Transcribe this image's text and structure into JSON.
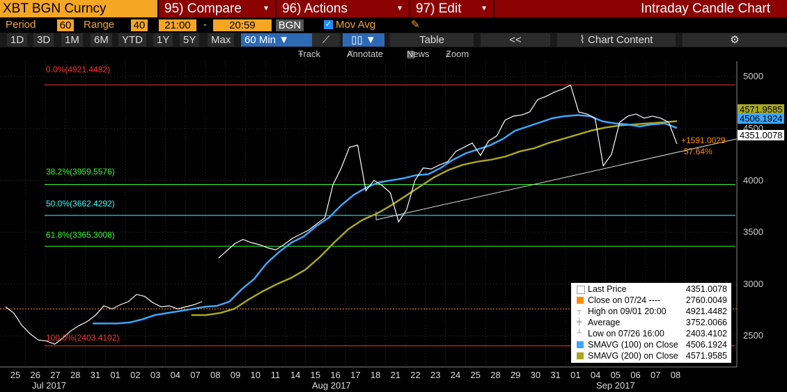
{
  "header": {
    "ticker": "XBT BGN Curncy",
    "compare": "95) Compare",
    "actions": "96) Actions",
    "edit": "97) Edit",
    "title": "Intraday Candle Chart"
  },
  "settings": {
    "period_label": "Period",
    "period_value": "60",
    "range_label": "Range",
    "range_value": "40",
    "time_from": "21:00",
    "dash": "-",
    "time_to": "20:59",
    "source": "BGN",
    "mov_avg_label": "Mov Avg"
  },
  "toolbar": {
    "timeframes": [
      "1D",
      "3D",
      "1M",
      "6M",
      "YTD",
      "1Y",
      "5Y",
      "Max"
    ],
    "interval": "60 Min ▼",
    "table_label": "Table",
    "collapse": "<<",
    "chart_content": "Chart Content",
    "tools": [
      "Track",
      "Annotate",
      "News",
      "Zoom"
    ]
  },
  "colors": {
    "price": "#ffffff",
    "sma100": "#3ea6ff",
    "sma200": "#a8a820",
    "fib_0": "#ff3030",
    "fib_382": "#33ff33",
    "fib_50": "#33ffff",
    "fib_618": "#33ff33",
    "fib_100": "#ff3030",
    "close_line": "#ff8c00",
    "trend": "#dddddd"
  },
  "chart_data": {
    "type": "line",
    "ylim": [
      2200,
      5150
    ],
    "yticks": [
      2500,
      3000,
      3500,
      4000,
      4500,
      5000
    ],
    "xticks": [
      "25",
      "26",
      "27",
      "28",
      "31",
      "01",
      "02",
      "03",
      "04",
      "07",
      "08",
      "09",
      "10",
      "11",
      "14",
      "15",
      "16",
      "17",
      "18",
      "21",
      "22",
      "23",
      "24",
      "25",
      "28",
      "29",
      "30",
      "31",
      "01",
      "04",
      "05",
      "06",
      "07",
      "08"
    ],
    "month_labels": [
      "Jul 2017",
      "Aug 2017",
      "Sep 2017"
    ],
    "fib_levels": [
      {
        "label": "0.0%(4921.4482)",
        "value": 4921.4482
      },
      {
        "label": "38.2%(3959.5576)",
        "value": 3959.5576
      },
      {
        "label": "50.0%(3662.4292)",
        "value": 3662.4292
      },
      {
        "label": "61.8%(3365.3008)",
        "value": 3365.3008
      },
      {
        "label": "100.0%(2403.4102)",
        "value": 2403.4102
      }
    ],
    "close_0724": 2760.0049,
    "annotation_change": "+1591.0029",
    "annotation_pct": "57.64%",
    "price_labels": {
      "last": "4351.0078",
      "sma100": "4506.1924",
      "sma200": "4571.9585"
    },
    "series": [
      {
        "name": "Last Price",
        "values": [
          2780,
          2720,
          2600,
          2520,
          2460,
          2450,
          2420,
          2480,
          2550,
          2600,
          2640,
          2700,
          2790,
          2760,
          2800,
          2830,
          2900,
          2880,
          2820,
          2780,
          2790,
          2760,
          2780,
          2800,
          2830,
          null,
          3250,
          3320,
          3390,
          3430,
          3400,
          3380,
          3350,
          3330,
          3380,
          3440,
          3480,
          3520,
          3580,
          3640,
          3960,
          4120,
          4320,
          4340,
          3900,
          4000,
          3950,
          3880,
          3600,
          3720,
          4000,
          4120,
          4110,
          4150,
          4180,
          4280,
          4320,
          4360,
          4240,
          4380,
          4430,
          4580,
          4620,
          4630,
          4660,
          4780,
          4810,
          4850,
          4880,
          4920,
          4660,
          4640,
          4600,
          4140,
          4250,
          4560,
          4620,
          4640,
          4600,
          4620,
          4600,
          4560,
          4351
        ]
      },
      {
        "name": "SMAVG (100) on Close",
        "values": [
          null,
          null,
          null,
          null,
          null,
          null,
          null,
          2620,
          2620,
          2620,
          2630,
          2660,
          2700,
          2720,
          2740,
          2760,
          2780,
          2790,
          2830,
          2950,
          3050,
          3200,
          3310,
          3400,
          3460,
          3560,
          3640,
          3760,
          3860,
          3930,
          3980,
          4000,
          4020,
          4050,
          4060,
          4120,
          4200,
          4260,
          4300,
          4340,
          4400,
          4480,
          4520,
          4560,
          4600,
          4620,
          4630,
          4620,
          4570,
          4550,
          4540,
          4520,
          4540,
          4550,
          4506
        ]
      },
      {
        "name": "SMAVG (200) on Close",
        "values": [
          null,
          null,
          null,
          null,
          null,
          null,
          null,
          null,
          null,
          null,
          null,
          null,
          null,
          2700,
          2700,
          2720,
          2760,
          2850,
          2930,
          3000,
          3060,
          3140,
          3260,
          3400,
          3530,
          3620,
          3680,
          3760,
          3850,
          3940,
          4030,
          4100,
          4150,
          4180,
          4200,
          4230,
          4280,
          4310,
          4360,
          4400,
          4440,
          4480,
          4510,
          4530,
          4540,
          4550,
          4560,
          4571
        ]
      }
    ]
  },
  "legend": {
    "items": [
      {
        "name": "Last Price",
        "value": "4351.0078",
        "color": "#ffffff"
      },
      {
        "name": "Close on 07/24 ----",
        "value": "2760.0049",
        "color": "#ff8c00"
      },
      {
        "name": "High on 09/01 20:00",
        "value": "4921.4482",
        "color": "#cccccc"
      },
      {
        "name": "Average",
        "value": "3752.0066",
        "color": "#cccccc"
      },
      {
        "name": "Low on 07/26 16:00",
        "value": "2403.4102",
        "color": "#cccccc"
      },
      {
        "name": "SMAVG (100) on Close",
        "value": "4506.1924",
        "color": "#3ea6ff"
      },
      {
        "name": "SMAVG (200) on Close",
        "value": "4571.9585",
        "color": "#a8a820"
      }
    ]
  }
}
